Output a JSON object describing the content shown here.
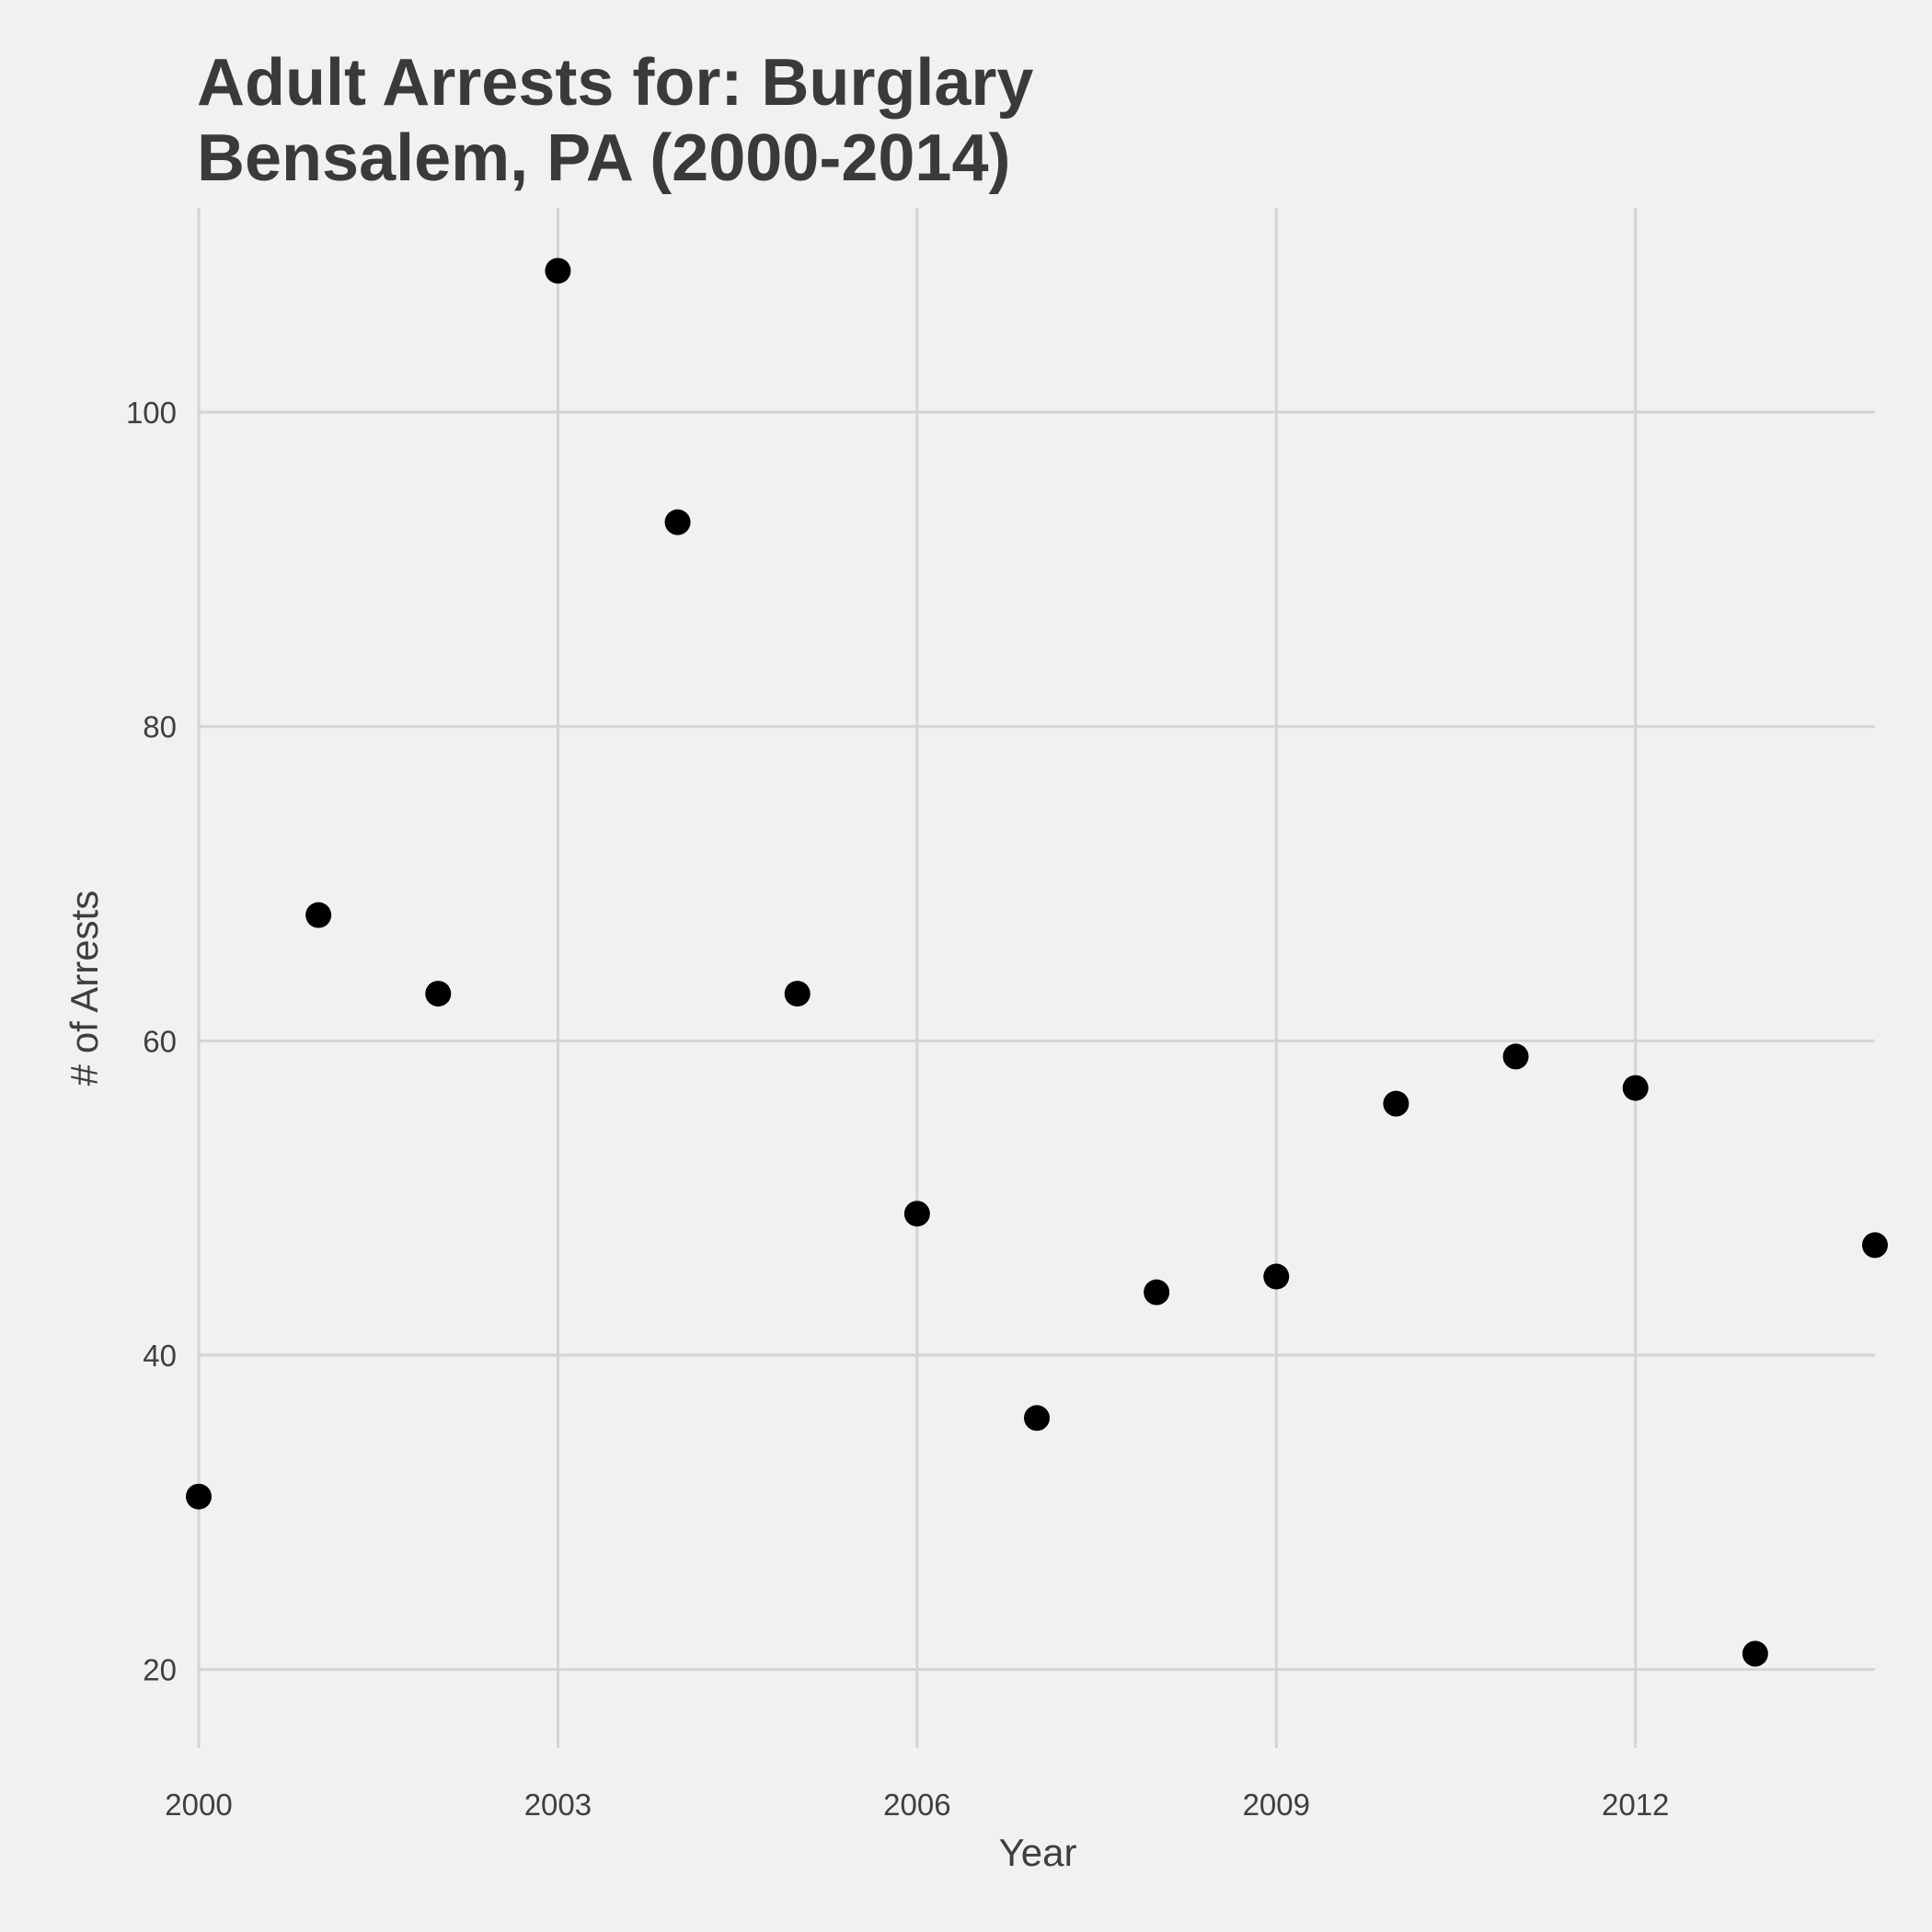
{
  "chart_data": {
    "type": "scatter",
    "title_lines": [
      "Adult Arrests for: Burglary",
      "Bensalem, PA (2000-2014)"
    ],
    "xlabel": "Year",
    "ylabel": "# of Arrests",
    "x": [
      2000,
      2001,
      2002,
      2003,
      2004,
      2005,
      2006,
      2007,
      2008,
      2009,
      2010,
      2011,
      2012,
      2013,
      2014
    ],
    "y": [
      31,
      68,
      63,
      109,
      93,
      63,
      49,
      36,
      44,
      45,
      56,
      59,
      57,
      21,
      47
    ],
    "xlim": [
      2000,
      2014
    ],
    "ylim": [
      15,
      113
    ],
    "x_ticks": [
      2000,
      2003,
      2006,
      2009,
      2012
    ],
    "x_tick_labels": [
      "2000",
      "2003",
      "2006",
      "2009",
      "2012"
    ],
    "y_ticks": [
      20,
      40,
      60,
      80,
      100
    ],
    "y_tick_labels": [
      "20",
      "40",
      "60",
      "80",
      "100"
    ],
    "grid": true,
    "legend": "none",
    "point_color": "#000000",
    "background_color": "#f1f1f1",
    "grid_color": "#d4d4d4"
  }
}
